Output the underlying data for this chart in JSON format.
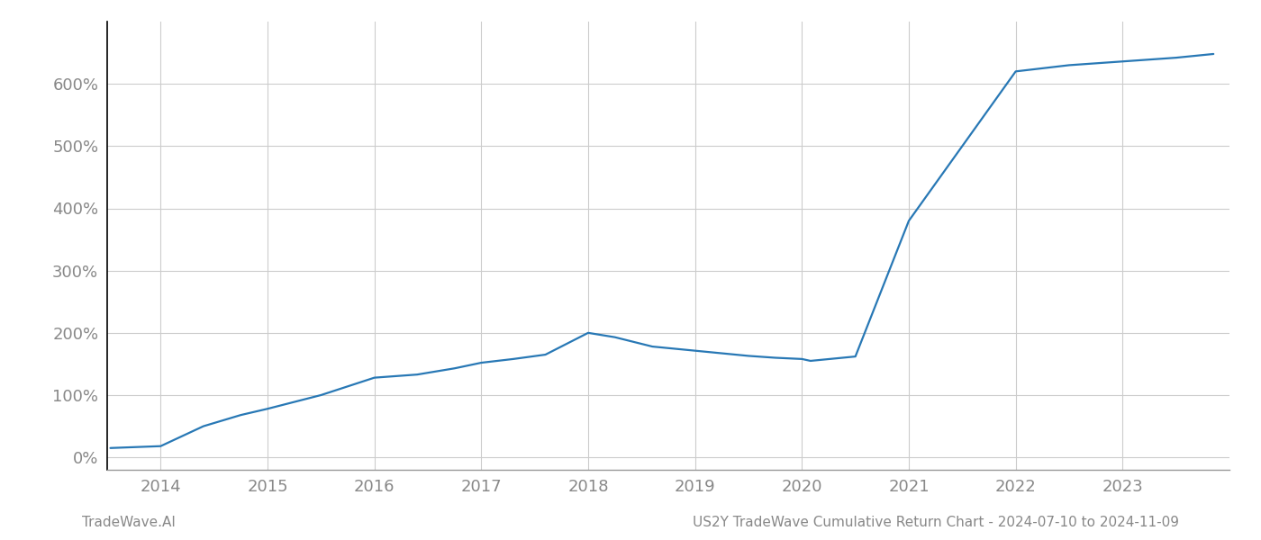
{
  "x_years": [
    2013.53,
    2014.0,
    2014.4,
    2014.75,
    2015.0,
    2015.5,
    2016.0,
    2016.4,
    2016.75,
    2017.0,
    2017.3,
    2017.6,
    2018.0,
    2018.25,
    2018.6,
    2018.9,
    2019.2,
    2019.5,
    2019.75,
    2020.0,
    2020.08,
    2020.5,
    2021.0,
    2021.5,
    2022.0,
    2022.5,
    2023.0,
    2023.5,
    2023.85
  ],
  "y_values": [
    15,
    18,
    50,
    68,
    78,
    100,
    128,
    133,
    143,
    152,
    158,
    165,
    200,
    193,
    178,
    173,
    168,
    163,
    160,
    158,
    155,
    162,
    380,
    500,
    620,
    630,
    636,
    642,
    648
  ],
  "line_color": "#2878b5",
  "line_width": 1.6,
  "bg_color": "#ffffff",
  "grid_color": "#cccccc",
  "ylabel_values": [
    0,
    100,
    200,
    300,
    400,
    500,
    600
  ],
  "xlim": [
    2013.5,
    2024.0
  ],
  "ylim": [
    -20,
    700
  ],
  "xtick_labels": [
    "2014",
    "2015",
    "2016",
    "2017",
    "2018",
    "2019",
    "2020",
    "2021",
    "2022",
    "2023"
  ],
  "xtick_positions": [
    2014,
    2015,
    2016,
    2017,
    2018,
    2019,
    2020,
    2021,
    2022,
    2023
  ],
  "footer_left": "TradeWave.AI",
  "footer_right": "US2Y TradeWave Cumulative Return Chart - 2024-07-10 to 2024-11-09",
  "tick_label_color": "#888888",
  "left_spine_color": "#000000",
  "bottom_spine_color": "#999999",
  "footer_color": "#888888"
}
